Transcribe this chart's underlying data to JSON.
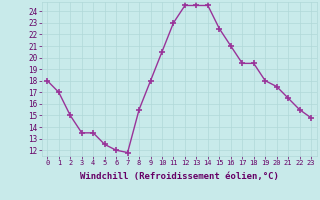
{
  "x": [
    0,
    1,
    2,
    3,
    4,
    5,
    6,
    7,
    8,
    9,
    10,
    11,
    12,
    13,
    14,
    15,
    16,
    17,
    18,
    19,
    20,
    21,
    22,
    23
  ],
  "y": [
    18,
    17,
    15,
    13.5,
    13.5,
    12.5,
    12,
    11.8,
    15.5,
    18,
    20.5,
    23,
    24.5,
    24.5,
    24.5,
    22.5,
    21,
    19.5,
    19.5,
    18,
    17.5,
    16.5,
    15.5,
    14.8
  ],
  "line_color": "#993399",
  "marker": "+",
  "markersize": 4,
  "markeredgewidth": 1.2,
  "linewidth": 1.0,
  "xlabel": "Windchill (Refroidissement éolien,°C)",
  "xlabel_fontsize": 6.5,
  "xlim": [
    -0.5,
    23.5
  ],
  "ylim": [
    11.5,
    24.8
  ],
  "yticks": [
    12,
    13,
    14,
    15,
    16,
    17,
    18,
    19,
    20,
    21,
    22,
    23,
    24
  ],
  "xticks": [
    0,
    1,
    2,
    3,
    4,
    5,
    6,
    7,
    8,
    9,
    10,
    11,
    12,
    13,
    14,
    15,
    16,
    17,
    18,
    19,
    20,
    21,
    22,
    23
  ],
  "xtick_fontsize": 5.0,
  "ytick_fontsize": 5.5,
  "grid_color": "#b0d8d8",
  "bg_color": "#c8eaea",
  "label_color": "#660066",
  "tick_color": "#660066"
}
